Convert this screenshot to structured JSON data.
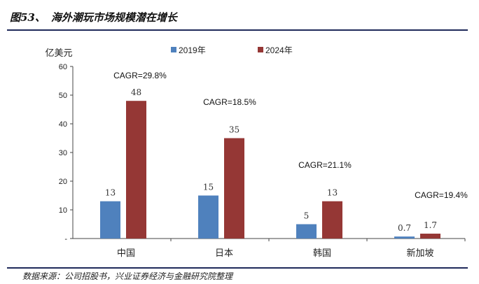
{
  "figure": {
    "number": "图53、",
    "title": "海外潮玩市场规模潜在增长",
    "source": "数据来源：公司招股书，兴业证券经济与金融研究院整理"
  },
  "colors": {
    "series_2019": "#4f81bd",
    "series_2024": "#953735",
    "rule": "#1f2a5a"
  },
  "chart_data": {
    "type": "bar",
    "unit_label": "亿美元",
    "categories": [
      "中国",
      "日本",
      "韩国",
      "新加坡"
    ],
    "series": [
      {
        "name": "2019年",
        "values": [
          13,
          15,
          5,
          0.7
        ],
        "labels": [
          "13",
          "15",
          "5",
          "0.7"
        ]
      },
      {
        "name": "2024年",
        "values": [
          48,
          35,
          13,
          1.7
        ],
        "labels": [
          "48",
          "35",
          "13",
          "1.7"
        ]
      }
    ],
    "annotations": [
      "CAGR=29.8%",
      "CAGR=18.5%",
      "CAGR=21.1%",
      "CAGR=19.4%"
    ],
    "ylim": [
      0,
      60
    ],
    "yticks": [
      0,
      10,
      20,
      30,
      40,
      50,
      60
    ],
    "ytick_labels": [
      "-",
      "10",
      "20",
      "30",
      "40",
      "50",
      "60"
    ],
    "legend_position": "top",
    "grid": false
  }
}
